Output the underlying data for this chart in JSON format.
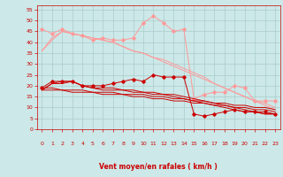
{
  "xlabel": "Vent moyen/en rafales ( km/h )",
  "background_color": "#cce8e8",
  "grid_color": "#aacccc",
  "line_color_dark": "#cc0000",
  "line_color_light": "#ff9999",
  "x": [
    0,
    1,
    2,
    3,
    4,
    5,
    6,
    7,
    8,
    9,
    10,
    11,
    12,
    13,
    14,
    15,
    16,
    17,
    18,
    19,
    20,
    21,
    22,
    23
  ],
  "ylim": [
    0,
    57
  ],
  "yticks": [
    0,
    5,
    10,
    15,
    20,
    25,
    30,
    35,
    40,
    45,
    50,
    55
  ],
  "series": {
    "light_peak": [
      46,
      44,
      46,
      44,
      43,
      41,
      42,
      41,
      41,
      42,
      49,
      52,
      49,
      45,
      46,
      14,
      16,
      17,
      17,
      20,
      19,
      13,
      13,
      13
    ],
    "light_trend1": [
      36,
      41,
      45,
      44,
      43,
      42,
      41,
      40,
      38,
      36,
      35,
      33,
      31,
      29,
      27,
      25,
      23,
      21,
      19,
      17,
      15,
      13,
      11,
      9
    ],
    "light_trend2": [
      36,
      42,
      45,
      44,
      43,
      42,
      41,
      40,
      38,
      36,
      35,
      33,
      32,
      30,
      28,
      26,
      24,
      21,
      19,
      17,
      15,
      13,
      12,
      10
    ],
    "dark_peak": [
      19,
      22,
      22,
      22,
      20,
      20,
      20,
      21,
      22,
      23,
      22,
      25,
      24,
      24,
      24,
      7,
      6,
      7,
      8,
      9,
      8,
      8,
      8,
      7
    ],
    "dark_mean1": [
      18,
      21,
      22,
      22,
      20,
      19,
      19,
      19,
      18,
      18,
      17,
      17,
      16,
      16,
      15,
      14,
      13,
      12,
      11,
      10,
      9,
      8,
      7,
      7
    ],
    "dark_mean2": [
      18,
      21,
      21,
      22,
      20,
      19,
      18,
      18,
      18,
      17,
      17,
      16,
      16,
      15,
      14,
      13,
      12,
      11,
      10,
      9,
      8,
      8,
      7,
      7
    ],
    "dark_trend1": [
      19,
      19,
      18,
      18,
      18,
      17,
      17,
      17,
      16,
      16,
      16,
      15,
      15,
      14,
      14,
      13,
      13,
      12,
      12,
      11,
      11,
      10,
      10,
      9
    ],
    "dark_trend2": [
      18,
      18,
      18,
      17,
      17,
      17,
      16,
      16,
      16,
      15,
      15,
      14,
      14,
      13,
      13,
      12,
      12,
      11,
      11,
      10,
      10,
      9,
      9,
      8
    ]
  },
  "wind_arrows": [
    "↑",
    "↑",
    "⮠",
    "↑",
    "↑",
    "↑",
    "↑",
    "↑",
    "⮠",
    "←",
    "⮠",
    "⮠",
    "⮡",
    "⮡",
    "⮠",
    "↓",
    "↓",
    "⮣",
    "↑",
    "↑",
    "⮠",
    "↗",
    "↑",
    "⮢"
  ]
}
